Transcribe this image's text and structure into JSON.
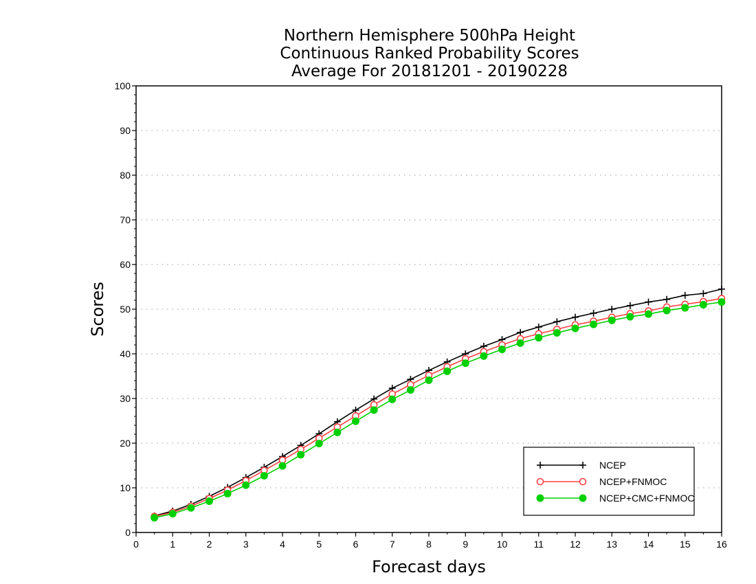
{
  "chart_data": {
    "type": "line",
    "title": [
      "Northern Hemisphere 500hPa Height",
      "Continuous Ranked Probability Scores",
      "Average For 20181201 - 20190228"
    ],
    "xlabel": "Forecast days",
    "ylabel": "Scores",
    "xlim": [
      0,
      16
    ],
    "ylim": [
      0,
      100
    ],
    "xticks": [
      "0",
      "1",
      "2",
      "3",
      "4",
      "5",
      "6",
      "7",
      "8",
      "9",
      "10",
      "11",
      "12",
      "13",
      "14",
      "15",
      "16"
    ],
    "yticks": [
      "0",
      "10",
      "20",
      "30",
      "40",
      "50",
      "60",
      "70",
      "80",
      "90",
      "100"
    ],
    "grid": "horizontal-dotted",
    "legend_position": "bottom-right",
    "x": [
      0.5,
      1,
      1.5,
      2,
      2.5,
      3,
      3.5,
      4,
      4.5,
      5,
      5.5,
      6,
      6.5,
      7,
      7.5,
      8,
      8.5,
      9,
      9.5,
      10,
      10.5,
      11,
      11.5,
      12,
      12.5,
      13,
      13.5,
      14,
      14.5,
      15,
      15.5,
      16
    ],
    "series": [
      {
        "name": "NCEP",
        "color": "#000000",
        "marker": "plus",
        "values": [
          3.7,
          4.8,
          6.3,
          8.1,
          10.1,
          12.3,
          14.6,
          17.0,
          19.5,
          22.1,
          24.8,
          27.4,
          29.9,
          32.3,
          34.3,
          36.3,
          38.2,
          40.0,
          41.7,
          43.2,
          44.8,
          46.0,
          47.2,
          48.2,
          49.1,
          50.0,
          50.8,
          51.6,
          52.2,
          53.1,
          53.5,
          54.5
        ]
      },
      {
        "name": "NCEP+FNMOC",
        "color": "#ff4040",
        "marker": "open-circle",
        "values": [
          3.6,
          4.5,
          5.9,
          7.6,
          9.5,
          11.6,
          13.9,
          16.2,
          18.6,
          21.1,
          23.6,
          26.1,
          28.6,
          31.0,
          33.1,
          35.2,
          37.1,
          38.9,
          40.5,
          42.0,
          43.4,
          44.5,
          45.5,
          46.5,
          47.3,
          48.2,
          49.0,
          49.6,
          50.5,
          51.1,
          51.7,
          52.4
        ]
      },
      {
        "name": "NCEP+CMC+FNMOC",
        "color": "#00d000",
        "marker": "filled-circle",
        "values": [
          3.3,
          4.2,
          5.5,
          7.0,
          8.7,
          10.6,
          12.7,
          14.9,
          17.4,
          19.9,
          22.4,
          24.9,
          27.4,
          29.8,
          31.9,
          34.1,
          36.1,
          37.9,
          39.5,
          41.0,
          42.4,
          43.6,
          44.7,
          45.7,
          46.6,
          47.5,
          48.3,
          48.9,
          49.7,
          50.3,
          51.0,
          51.6
        ]
      }
    ]
  }
}
